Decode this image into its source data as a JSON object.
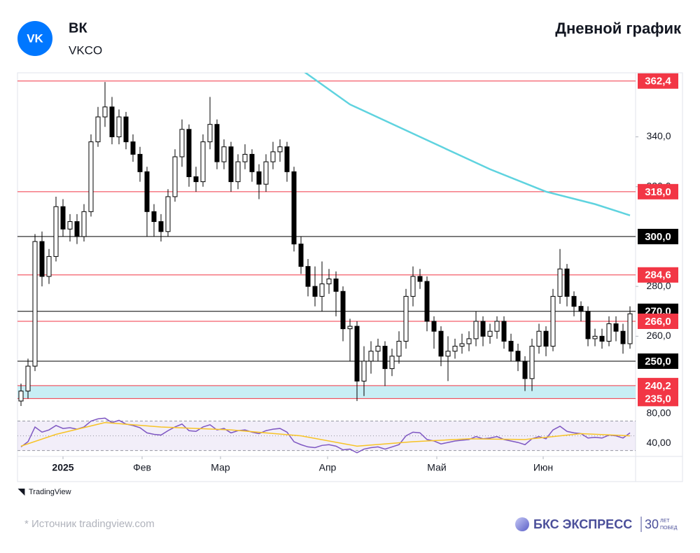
{
  "header": {
    "logo": "VK",
    "name": "ВК",
    "ticker": "VKCO"
  },
  "chart_data": {
    "type": "candlestick",
    "title": "Дневной график",
    "open": [
      234,
      238,
      248,
      298,
      284,
      292,
      312,
      303,
      306,
      300,
      310,
      338,
      348,
      352,
      340,
      348,
      338,
      333,
      326,
      310,
      306,
      302,
      316,
      332,
      343,
      324,
      322,
      338,
      345,
      330,
      336,
      322,
      330,
      333,
      326,
      321,
      330,
      334,
      336,
      326,
      297,
      288,
      280,
      276,
      281,
      283,
      278,
      263,
      264,
      242,
      250,
      254,
      256,
      247,
      252,
      258,
      276,
      284,
      282,
      266,
      262,
      252,
      254,
      256,
      257,
      259,
      266,
      260,
      262,
      266,
      258,
      254,
      250,
      243,
      256,
      262,
      256,
      276,
      287,
      276,
      272,
      270,
      259,
      260,
      258,
      265,
      262,
      257
    ],
    "high": [
      241,
      251,
      301,
      302,
      295,
      316,
      315,
      309,
      309,
      313,
      341,
      352,
      362,
      356,
      351,
      350,
      341,
      336,
      328,
      313,
      309,
      319,
      335,
      347,
      345,
      328,
      341,
      356,
      347,
      339,
      338,
      333,
      337,
      335,
      329,
      333,
      338,
      339,
      338,
      328,
      300,
      291,
      288,
      290,
      287,
      286,
      280,
      267,
      266,
      256,
      258,
      259,
      258,
      255,
      262,
      279,
      288,
      287,
      284,
      268,
      264,
      260,
      259,
      261,
      262,
      270,
      268,
      265,
      268,
      268,
      261,
      257,
      252,
      259,
      265,
      264,
      279,
      295,
      289,
      278,
      274,
      272,
      263,
      263,
      268,
      268,
      265,
      272
    ],
    "low": [
      232,
      235,
      246,
      280,
      281,
      290,
      300,
      298,
      297,
      298,
      308,
      336,
      344,
      337,
      337,
      335,
      330,
      322,
      300,
      300,
      298,
      300,
      314,
      328,
      320,
      318,
      320,
      335,
      327,
      327,
      318,
      319,
      327,
      322,
      315,
      318,
      327,
      330,
      322,
      294,
      285,
      276,
      272,
      270,
      277,
      268,
      258,
      250,
      234,
      236,
      245,
      250,
      240,
      244,
      249,
      255,
      272,
      279,
      262,
      255,
      248,
      242,
      251,
      253,
      254,
      256,
      256,
      257,
      259,
      255,
      250,
      246,
      238,
      238,
      253,
      252,
      254,
      273,
      272,
      268,
      266,
      256,
      256,
      255,
      256,
      258,
      253,
      255
    ],
    "close": [
      238,
      248,
      298,
      284,
      292,
      312,
      303,
      306,
      300,
      310,
      338,
      348,
      352,
      340,
      348,
      338,
      333,
      326,
      310,
      306,
      302,
      316,
      332,
      343,
      324,
      322,
      338,
      345,
      330,
      336,
      322,
      330,
      333,
      326,
      321,
      330,
      334,
      336,
      326,
      297,
      288,
      280,
      276,
      281,
      283,
      278,
      263,
      264,
      242,
      250,
      254,
      256,
      247,
      252,
      258,
      276,
      284,
      282,
      266,
      262,
      252,
      254,
      256,
      257,
      259,
      266,
      260,
      262,
      266,
      258,
      254,
      250,
      243,
      256,
      262,
      256,
      276,
      287,
      276,
      272,
      270,
      259,
      260,
      258,
      265,
      262,
      257,
      269
    ],
    "up_color": "#ffffff",
    "down_color": "#000000",
    "xlim": [
      -0.5,
      87.8
    ],
    "xticks": [
      {
        "value": 6,
        "label": "2025"
      },
      {
        "value": 17.3,
        "label": "Фев"
      },
      {
        "value": 28.5,
        "label": "Мар"
      },
      {
        "value": 43.8,
        "label": "Апр"
      },
      {
        "value": 59.4,
        "label": "Май"
      },
      {
        "value": 74.6,
        "label": "Июн"
      }
    ],
    "ylim": [
      229.2,
      365.7
    ],
    "yticks": [
      {
        "value": 260,
        "label": "260,0"
      },
      {
        "value": 280,
        "label": "280,0"
      },
      {
        "value": 320,
        "label": "320,0"
      },
      {
        "value": 340,
        "label": "340,0"
      }
    ],
    "zone": {
      "from": 235,
      "to": 240.2,
      "color": "#c8eef5"
    },
    "levels": [
      {
        "value": 362.4,
        "label": "362,4",
        "color": "#f23645"
      },
      {
        "value": 318,
        "label": "318,0",
        "color": "#f23645"
      },
      {
        "value": 300,
        "label": "300,0",
        "color": "#000000"
      },
      {
        "value": 284.6,
        "label": "284,6",
        "color": "#f23645"
      },
      {
        "value": 270,
        "label": "270,0",
        "color": "#000000"
      },
      {
        "value": 266,
        "label": "266,0",
        "color": "#f23645"
      },
      {
        "value": 250,
        "label": "250,0",
        "color": "#000000"
      },
      {
        "value": 240.2,
        "label": "240,2",
        "color": "#f23645"
      },
      {
        "value": 235,
        "label": "235,0",
        "color": "#f23645"
      }
    ],
    "moving_average": {
      "color": "#5fd3df",
      "x": [
        40,
        47,
        57,
        67,
        75,
        82,
        87
      ],
      "values": [
        367,
        353,
        340,
        327,
        318,
        313,
        308.5
      ]
    },
    "oscillator": {
      "ylim": [
        24,
        80
      ],
      "yticks": [
        {
          "value": 80,
          "label": "80,00"
        },
        {
          "value": 40,
          "label": "40,00"
        }
      ],
      "bands": [
        30,
        70
      ],
      "middle": 50,
      "color": "#7e57c2",
      "values": [
        35,
        42,
        62,
        55,
        58,
        64,
        60,
        61,
        59,
        62,
        70,
        73,
        74,
        68,
        71,
        66,
        64,
        61,
        54,
        52,
        51,
        57,
        62,
        66,
        57,
        56,
        62,
        65,
        58,
        60,
        54,
        57,
        58,
        55,
        53,
        57,
        59,
        60,
        55,
        42,
        38,
        35,
        34,
        37,
        38,
        36,
        31,
        32,
        27,
        32,
        34,
        35,
        32,
        35,
        38,
        50,
        55,
        54,
        45,
        43,
        39,
        41,
        43,
        44,
        45,
        49,
        46,
        47,
        49,
        45,
        43,
        41,
        38,
        46,
        49,
        46,
        58,
        63,
        56,
        54,
        53,
        47,
        48,
        47,
        51,
        50,
        47,
        54
      ],
      "signal": {
        "color": "#f7c325",
        "x": [
          0,
          5,
          12,
          20,
          30,
          40,
          48,
          56,
          64,
          72,
          80,
          87
        ],
        "values": [
          36,
          52,
          68,
          62,
          58,
          50,
          36,
          42,
          46,
          45,
          53,
          50
        ]
      }
    }
  },
  "footer": {
    "tradingview": "TradingView",
    "source": "* Источник tradingview.com",
    "brand": "БКС ЭКСПРЕСС",
    "years": "30",
    "motto1": "ЛЕТ",
    "motto2": "ПОБЕД"
  }
}
